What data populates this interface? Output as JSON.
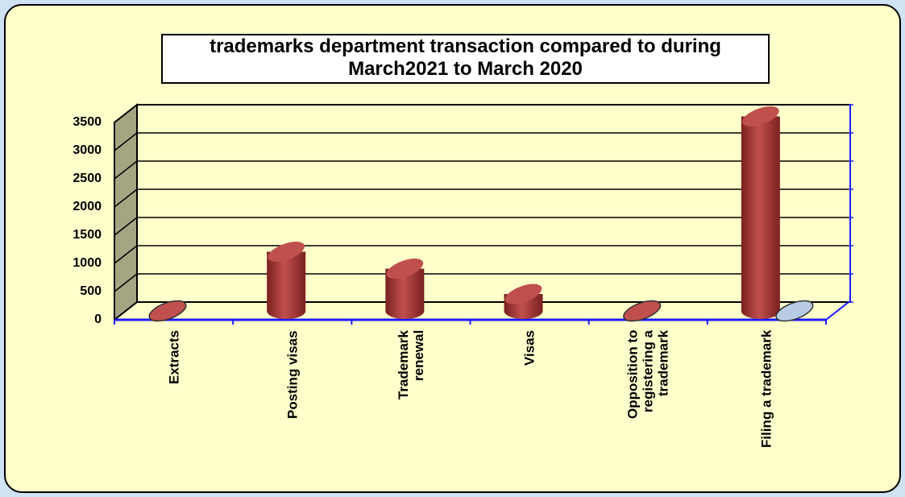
{
  "chart_data": {
    "type": "bar",
    "title": "trademarks department transaction compared to during\nMarch2021 to March 2020",
    "categories": [
      "Extracts",
      "Posting visas",
      "Trademark\nrenewal",
      "Visas",
      "Opposition to\nregistering a\ntrademark",
      "Filing a trademark"
    ],
    "series": [
      {
        "color": "#c0504d",
        "values": [
          0,
          1050,
          750,
          300,
          0,
          3450
        ]
      },
      {
        "color": "#b8cce4",
        "values": [
          null,
          null,
          null,
          null,
          null,
          0
        ]
      }
    ],
    "ylim": [
      0,
      3500
    ],
    "yticks": [
      0,
      500,
      1000,
      1500,
      2000,
      2500,
      3000,
      3500
    ],
    "grid": true
  }
}
